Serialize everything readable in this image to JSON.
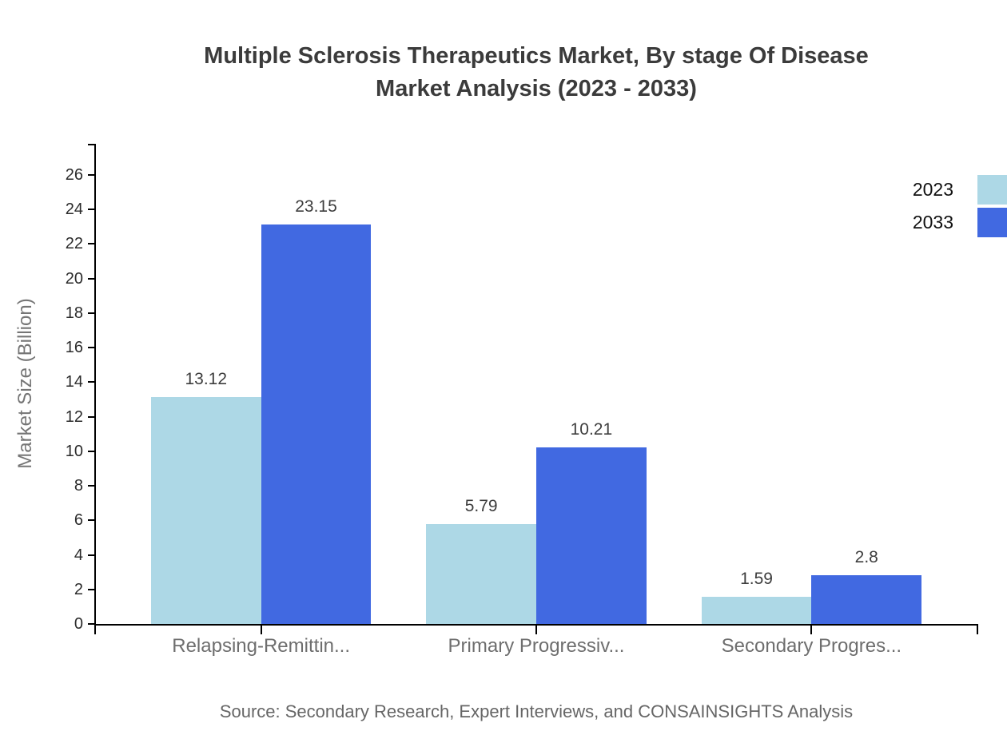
{
  "title": {
    "line1": "Multiple Sclerosis Therapeutics Market, By stage Of Disease",
    "line2": "Market Analysis (2023 - 2033)"
  },
  "y_axis": {
    "label": "Market Size (Billion)",
    "ticks": [
      0,
      2,
      4,
      6,
      8,
      10,
      12,
      14,
      16,
      18,
      20,
      22,
      24,
      26
    ]
  },
  "legend": {
    "items": [
      {
        "label": "2023",
        "color": "#ADD8E6"
      },
      {
        "label": "2033",
        "color": "#4169E1"
      }
    ]
  },
  "source": "Source: Secondary Research, Expert Interviews, and CONSAINSIGHTS Analysis",
  "colors": {
    "series_2023": "#ADD8E6",
    "series_2033": "#4169E1",
    "axis": "#000000",
    "title_text": "#3b3b3b",
    "muted_text": "#6e6e6e"
  },
  "chart_data": {
    "type": "bar",
    "title": "Multiple Sclerosis Therapeutics Market, By stage Of Disease Market Analysis (2023 - 2033)",
    "categories": [
      "Relapsing-Remittin...",
      "Primary Progressiv...",
      "Secondary Progres..."
    ],
    "series": [
      {
        "name": "2023",
        "color": "#ADD8E6",
        "values": [
          13.12,
          5.79,
          1.59
        ]
      },
      {
        "name": "2033",
        "color": "#4169E1",
        "values": [
          23.15,
          10.21,
          2.8
        ]
      }
    ],
    "xlabel": "",
    "ylabel": "Market Size (Billion)",
    "ylim": [
      0,
      27.8
    ],
    "yticks": [
      0,
      2,
      4,
      6,
      8,
      10,
      12,
      14,
      16,
      18,
      20,
      22,
      24,
      26
    ],
    "grid": false,
    "legend_position": "top-right",
    "source_note": "Source: Secondary Research, Expert Interviews, and CONSAINSIGHTS Analysis"
  }
}
